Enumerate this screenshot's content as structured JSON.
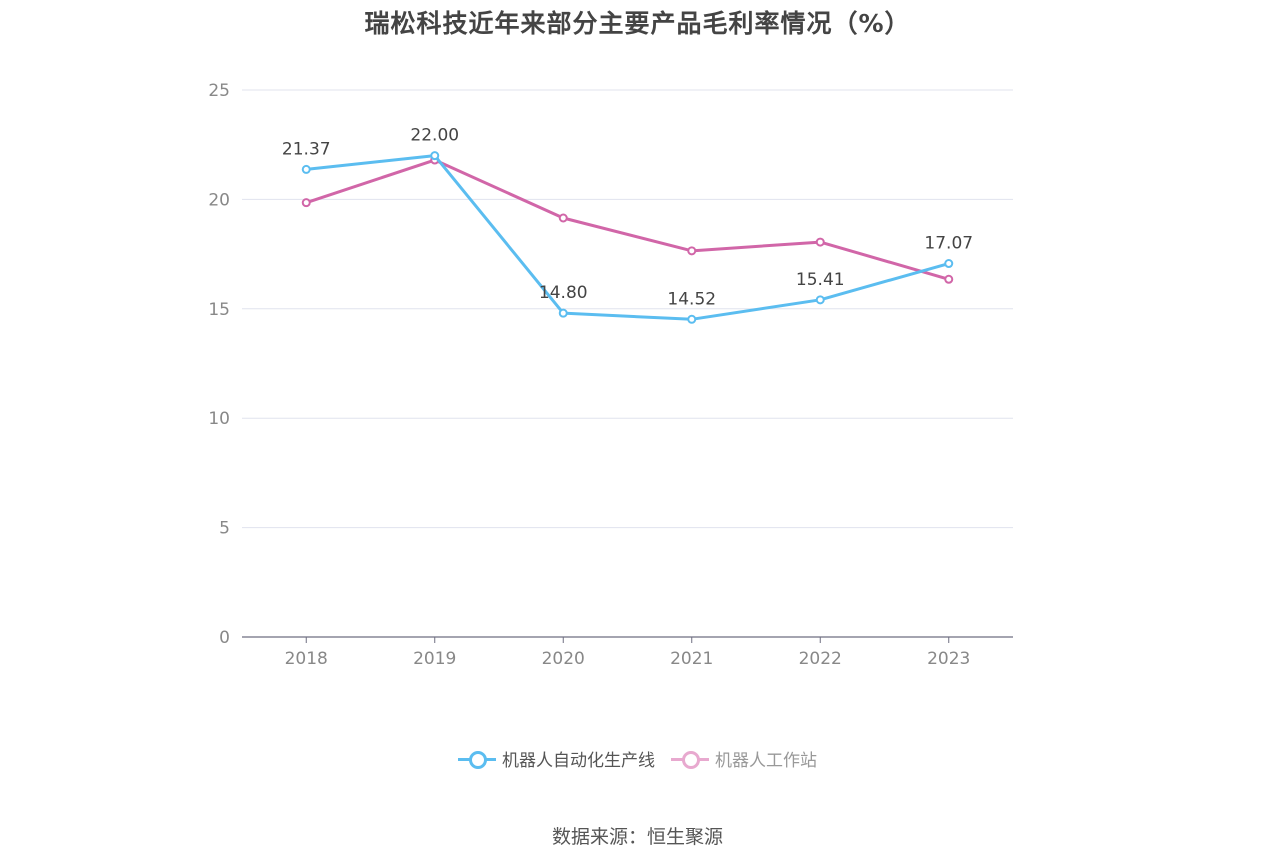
{
  "title": "瑞松科技近年来部分主要产品毛利率情况（%）",
  "source": "数据来源：恒生聚源",
  "colors": {
    "series1": "#5bbdf0",
    "series2": "#d166a8",
    "series2_legend": "#e8a9cf",
    "grid": "#e0e3ee",
    "axis": "#6e6e80"
  },
  "legend": [
    {
      "name": "机器人自动化生产线"
    },
    {
      "name": "机器人工作站"
    }
  ],
  "chart_data": {
    "type": "line",
    "title": "瑞松科技近年来部分主要产品毛利率情况（%）",
    "categories": [
      "2018",
      "2019",
      "2020",
      "2021",
      "2022",
      "2023"
    ],
    "ylim": [
      0,
      25
    ],
    "yticks": [
      0,
      5,
      10,
      15,
      20,
      25
    ],
    "grid": true,
    "legend_position": "bottom",
    "series": [
      {
        "name": "机器人自动化生产线",
        "values": [
          21.37,
          22.0,
          14.8,
          14.52,
          15.41,
          17.07
        ],
        "labels": [
          "21.37",
          "22.00",
          "14.80",
          "14.52",
          "15.41",
          "17.07"
        ]
      },
      {
        "name": "机器人工作站",
        "values": [
          19.85,
          21.8,
          19.15,
          17.65,
          18.05,
          16.35
        ]
      }
    ]
  }
}
